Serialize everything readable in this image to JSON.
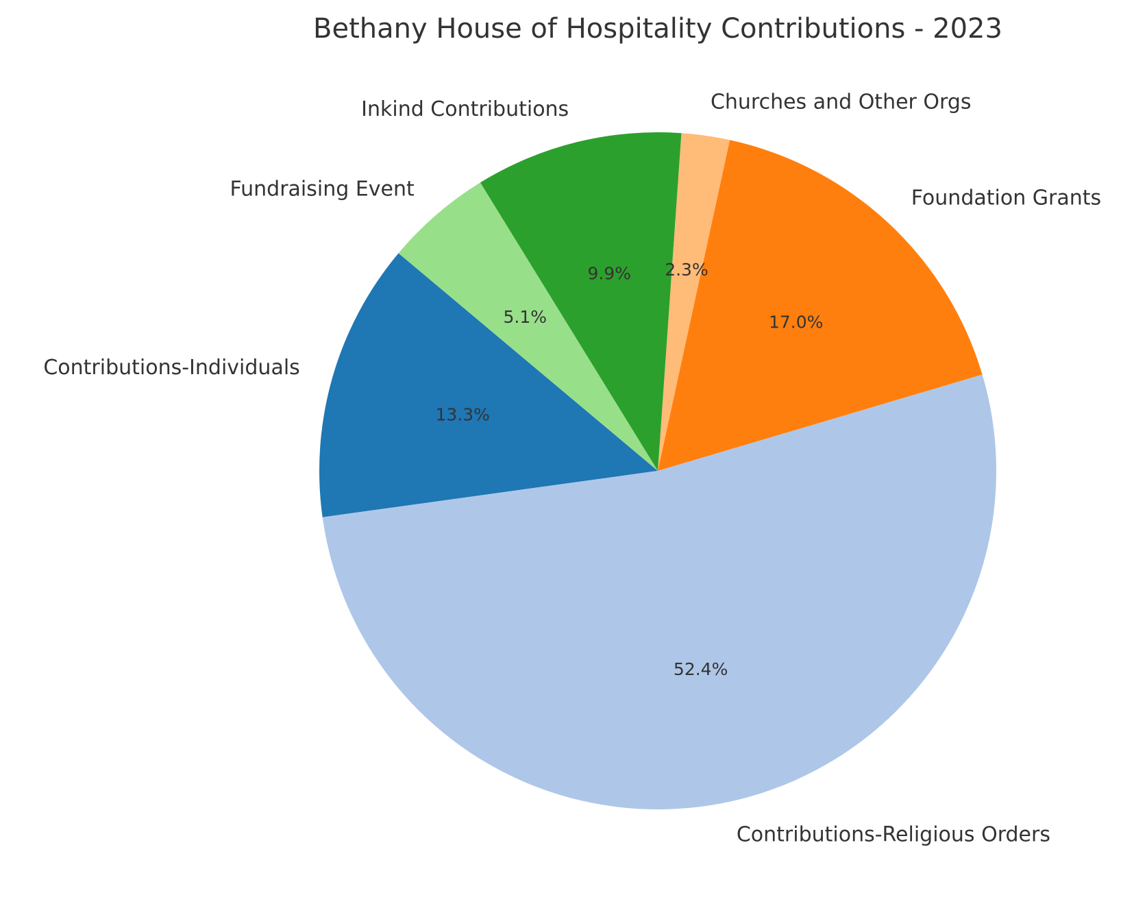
{
  "chart_data": {
    "type": "pie",
    "title": "Bethany House of Hospitality Contributions - 2023",
    "slices": [
      {
        "label": "Contributions-Individuals",
        "value": 13.3,
        "value_label": "13.3%",
        "color": "#1f77b4"
      },
      {
        "label": "Contributions-Religious Orders",
        "value": 52.4,
        "value_label": "52.4%",
        "color": "#aec7e8"
      },
      {
        "label": "Foundation Grants",
        "value": 17.0,
        "value_label": "17.0%",
        "color": "#ff7f0e"
      },
      {
        "label": "Churches and Other Orgs",
        "value": 2.3,
        "value_label": "2.3%",
        "color": "#ffbb78"
      },
      {
        "label": "Inkind Contributions",
        "value": 9.9,
        "value_label": "9.9%",
        "color": "#2ca02c"
      },
      {
        "label": "Fundraising Event",
        "value": 5.1,
        "value_label": "5.1%",
        "color": "#98df8a"
      }
    ],
    "start_angle": 140,
    "direction": "counterclockwise"
  }
}
